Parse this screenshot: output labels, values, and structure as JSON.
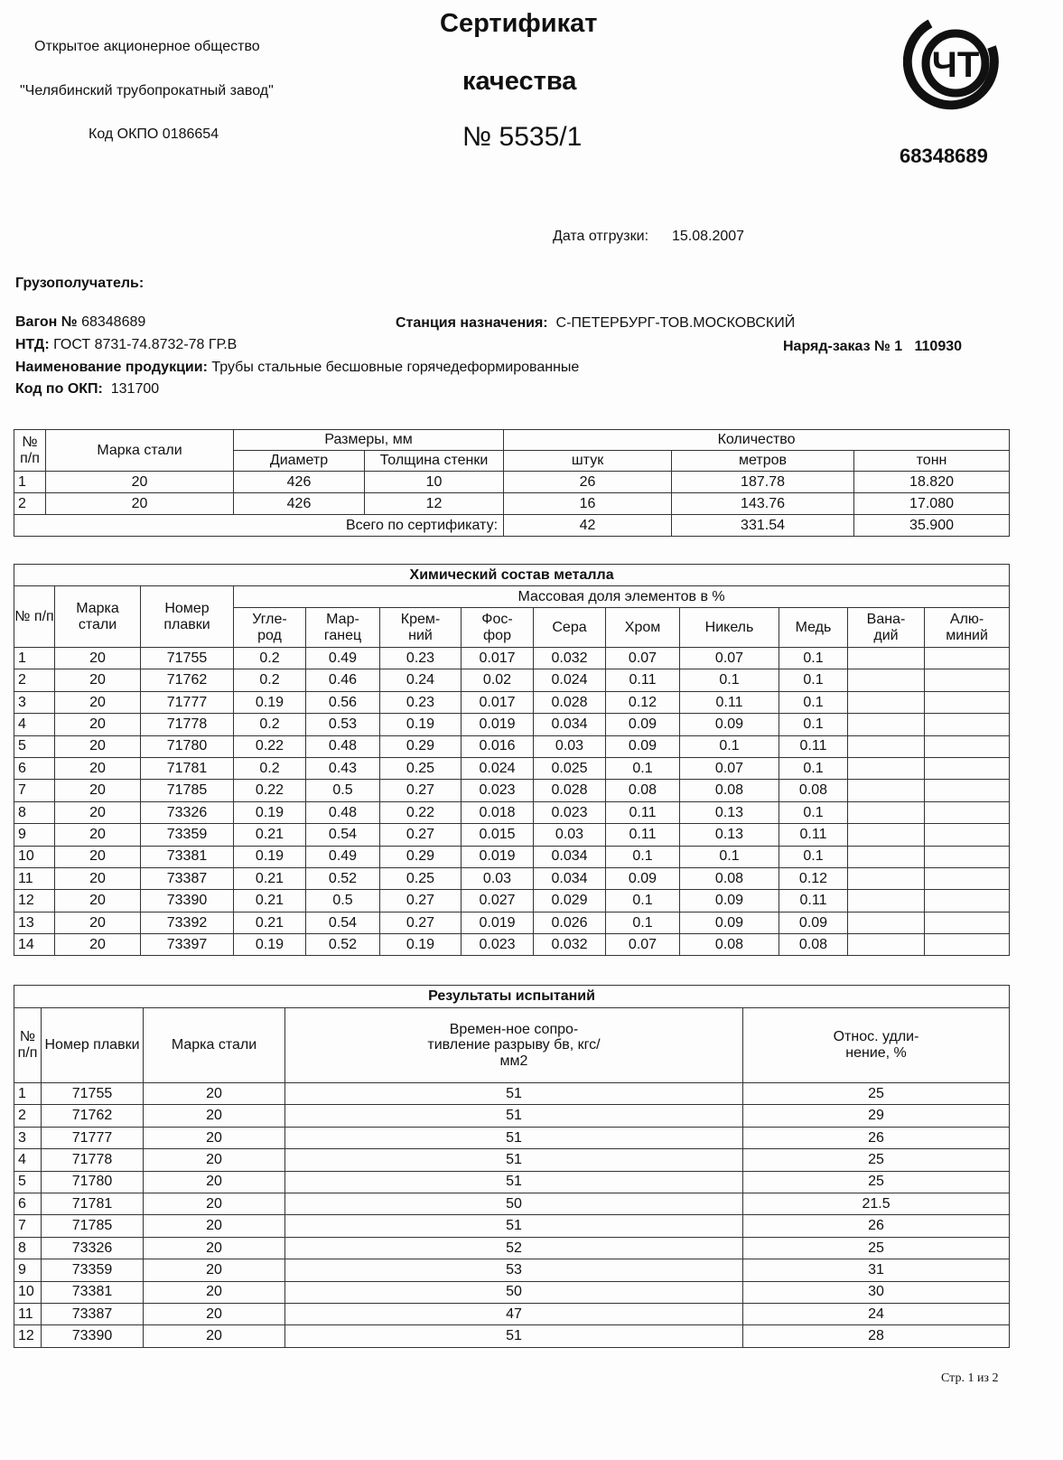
{
  "header": {
    "company_line1": "Открытое акционерное общество",
    "company_line2": "\"Челябинский трубопрокатный завод\"",
    "okpo": "Код ОКПО 0186654",
    "title1": "Сертификат",
    "title2": "качества",
    "number": "№ 5535/1",
    "logo_text": "ЧТ",
    "wagon_number_top": "68348689"
  },
  "info": {
    "ship_date_label": "Дата отгрузки:",
    "ship_date": "15.08.2007",
    "consignee_label": "Грузополучатель:",
    "wagon_label": "Вагон №",
    "wagon": "68348689",
    "station_label": "Станция назначения:",
    "station": "С-ПЕТЕРБУРГ-ТОВ.МОСКОВСКИЙ",
    "ntd_label": "НТД:",
    "ntd": "ГОСТ 8731-74.8732-78 ГР.В",
    "order_label": "Наряд-заказ №",
    "order_no": "1",
    "order_code": "110930",
    "product_label": "Наименование продукции:",
    "product": "Трубы стальные бесшовные горячедеформированные",
    "okp_label": "Код по ОКП:",
    "okp": "131700"
  },
  "qty_table": {
    "h_num": "№ п/п",
    "h_grade": "Марка стали",
    "h_sizes": "Размеры, мм",
    "h_diam": "Диаметр",
    "h_wall": "Толщина стенки",
    "h_qty": "Количество",
    "h_pcs": "штук",
    "h_m": "метров",
    "h_t": "тонн",
    "rows": [
      [
        "1",
        "20",
        "426",
        "10",
        "26",
        "187.78",
        "18.820"
      ],
      [
        "2",
        "20",
        "426",
        "12",
        "16",
        "143.76",
        "17.080"
      ]
    ],
    "total_label": "Всего по сертификату:",
    "total": [
      "42",
      "331.54",
      "35.900"
    ]
  },
  "chem_table": {
    "title": "Химический состав металла",
    "h_num": "№ п/п",
    "h_grade": "Марка стали",
    "h_heat": "Номер плавки",
    "h_mass": "Массовая доля элементов в %",
    "elements": [
      "Угле-род",
      "Мар-ганец",
      "Крем-ний",
      "Фос-фор",
      "Сера",
      "Хром",
      "Никель",
      "Медь",
      "Вана-дий",
      "Алю-миний"
    ],
    "rows": [
      [
        "1",
        "20",
        "71755",
        "0.2",
        "0.49",
        "0.23",
        "0.017",
        "0.032",
        "0.07",
        "0.07",
        "0.1",
        "",
        ""
      ],
      [
        "2",
        "20",
        "71762",
        "0.2",
        "0.46",
        "0.24",
        "0.02",
        "0.024",
        "0.11",
        "0.1",
        "0.1",
        "",
        ""
      ],
      [
        "3",
        "20",
        "71777",
        "0.19",
        "0.56",
        "0.23",
        "0.017",
        "0.028",
        "0.12",
        "0.11",
        "0.1",
        "",
        ""
      ],
      [
        "4",
        "20",
        "71778",
        "0.2",
        "0.53",
        "0.19",
        "0.019",
        "0.034",
        "0.09",
        "0.09",
        "0.1",
        "",
        ""
      ],
      [
        "5",
        "20",
        "71780",
        "0.22",
        "0.48",
        "0.29",
        "0.016",
        "0.03",
        "0.09",
        "0.1",
        "0.11",
        "",
        ""
      ],
      [
        "6",
        "20",
        "71781",
        "0.2",
        "0.43",
        "0.25",
        "0.024",
        "0.025",
        "0.1",
        "0.07",
        "0.1",
        "",
        ""
      ],
      [
        "7",
        "20",
        "71785",
        "0.22",
        "0.5",
        "0.27",
        "0.023",
        "0.028",
        "0.08",
        "0.08",
        "0.08",
        "",
        ""
      ],
      [
        "8",
        "20",
        "73326",
        "0.19",
        "0.48",
        "0.22",
        "0.018",
        "0.023",
        "0.11",
        "0.13",
        "0.1",
        "",
        ""
      ],
      [
        "9",
        "20",
        "73359",
        "0.21",
        "0.54",
        "0.27",
        "0.015",
        "0.03",
        "0.11",
        "0.13",
        "0.11",
        "",
        ""
      ],
      [
        "10",
        "20",
        "73381",
        "0.19",
        "0.49",
        "0.29",
        "0.019",
        "0.034",
        "0.1",
        "0.1",
        "0.1",
        "",
        ""
      ],
      [
        "11",
        "20",
        "73387",
        "0.21",
        "0.52",
        "0.25",
        "0.03",
        "0.034",
        "0.09",
        "0.08",
        "0.12",
        "",
        ""
      ],
      [
        "12",
        "20",
        "73390",
        "0.21",
        "0.5",
        "0.27",
        "0.027",
        "0.029",
        "0.1",
        "0.09",
        "0.11",
        "",
        ""
      ],
      [
        "13",
        "20",
        "73392",
        "0.21",
        "0.54",
        "0.27",
        "0.019",
        "0.026",
        "0.1",
        "0.09",
        "0.09",
        "",
        ""
      ],
      [
        "14",
        "20",
        "73397",
        "0.19",
        "0.52",
        "0.19",
        "0.023",
        "0.032",
        "0.07",
        "0.08",
        "0.08",
        "",
        ""
      ]
    ]
  },
  "test_table": {
    "title": "Результаты испытаний",
    "h_num": "№ п/п",
    "h_heat": "Номер плавки",
    "h_grade": "Марка стали",
    "h_strength": "Времен-ное сопро-тивление разрыву бв, кгс/мм2",
    "h_elong": "Относ. удли-нение, %",
    "rows": [
      [
        "1",
        "71755",
        "20",
        "51",
        "25"
      ],
      [
        "2",
        "71762",
        "20",
        "51",
        "29"
      ],
      [
        "3",
        "71777",
        "20",
        "51",
        "26"
      ],
      [
        "4",
        "71778",
        "20",
        "51",
        "25"
      ],
      [
        "5",
        "71780",
        "20",
        "51",
        "25"
      ],
      [
        "6",
        "71781",
        "20",
        "50",
        "21.5"
      ],
      [
        "7",
        "71785",
        "20",
        "51",
        "26"
      ],
      [
        "8",
        "73326",
        "20",
        "52",
        "25"
      ],
      [
        "9",
        "73359",
        "20",
        "53",
        "31"
      ],
      [
        "10",
        "73381",
        "20",
        "50",
        "30"
      ],
      [
        "11",
        "73387",
        "20",
        "47",
        "24"
      ],
      [
        "12",
        "73390",
        "20",
        "51",
        "28"
      ]
    ]
  },
  "footer": {
    "page": "Стр. 1 из 2"
  }
}
